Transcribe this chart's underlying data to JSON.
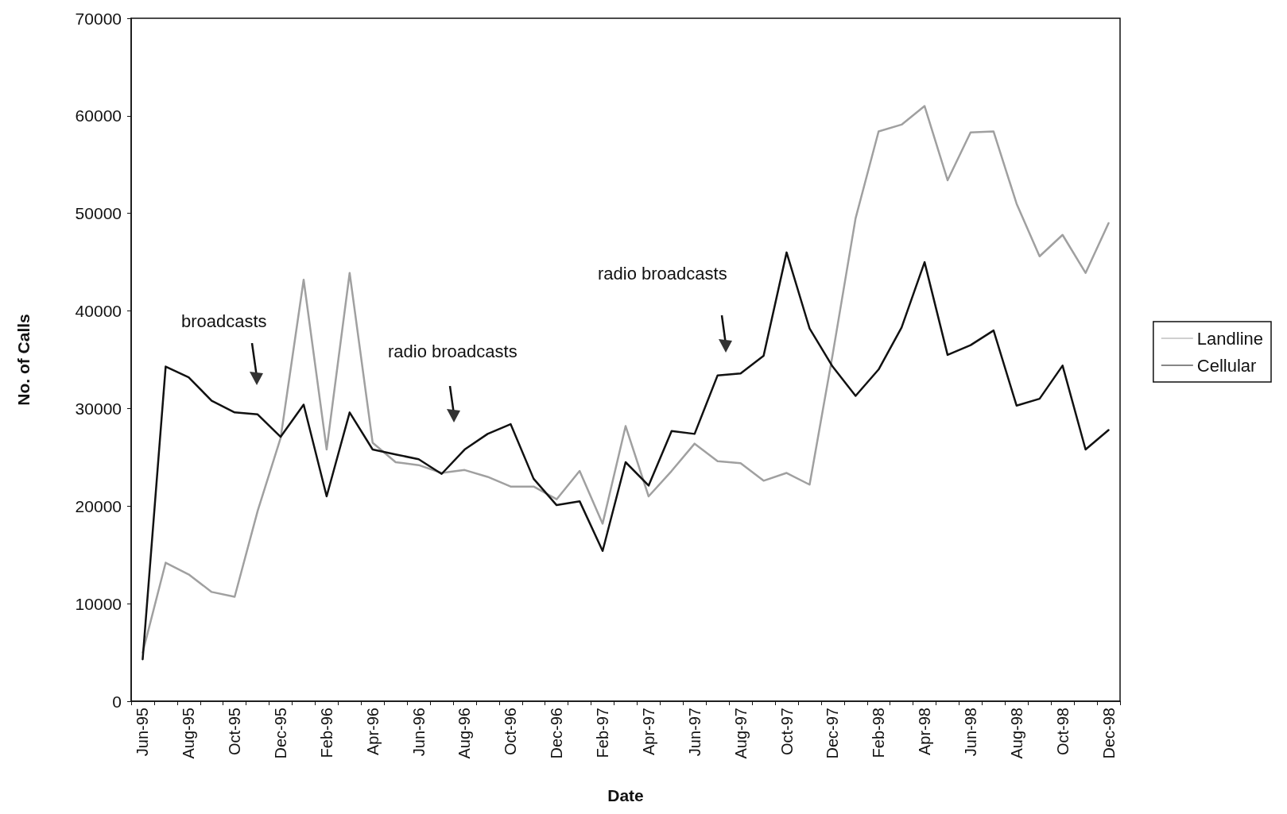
{
  "chart_data": {
    "type": "line",
    "xlabel": "Date",
    "ylabel": "No. of Calls",
    "categories": [
      "Jun-95",
      null,
      "Aug-95",
      null,
      "Oct-95",
      null,
      "Dec-95",
      null,
      "Feb-96",
      null,
      "Apr-96",
      null,
      "Jun-96",
      null,
      "Aug-96",
      null,
      "Oct-96",
      null,
      "Dec-96",
      null,
      "Feb-97",
      null,
      "Apr-97",
      null,
      "Jun-97",
      null,
      "Aug-97",
      null,
      "Oct-97",
      null,
      "Dec-97",
      null,
      "Feb-98",
      null,
      "Apr-98",
      null,
      "Jun-98",
      null,
      "Aug-98",
      null,
      "Oct-98",
      null,
      "Dec-98"
    ],
    "series": [
      {
        "name": "Landline",
        "color": "#a0a0a0",
        "values": [
          5000,
          14200,
          13000,
          11200,
          10700,
          19500,
          27000,
          43200,
          25800,
          43900,
          26500,
          24500,
          24200,
          23400,
          23700,
          23000,
          22000,
          22000,
          20700,
          23600,
          18200,
          28200,
          21000,
          23600,
          26400,
          24600,
          24400,
          22600,
          23400,
          22200,
          35500,
          49500,
          58400,
          59100,
          61000,
          53400,
          58300,
          58400,
          51000,
          45600,
          47800,
          43900,
          49000
        ]
      },
      {
        "name": "Cellular",
        "color": "#111111",
        "values": [
          4300,
          34300,
          33200,
          30800,
          29600,
          29400,
          27100,
          30400,
          21000,
          29600,
          25800,
          25300,
          24800,
          23300,
          25800,
          27400,
          28400,
          22800,
          20100,
          20500,
          15400,
          24500,
          22100,
          27700,
          27400,
          33400,
          33600,
          35400,
          46000,
          38200,
          34300,
          31300,
          34000,
          38300,
          45000,
          35500,
          36500,
          38000,
          30300,
          31000,
          34400,
          25800,
          27800
        ]
      }
    ],
    "ylim": [
      0,
      70000
    ],
    "yticks": [
      0,
      10000,
      20000,
      30000,
      40000,
      50000,
      60000,
      70000
    ],
    "grid": false,
    "legend": "right",
    "marker": "none",
    "line_style": "solid",
    "annotations": [
      "broadcasts",
      "radio broadcasts",
      "radio broadcasts"
    ]
  }
}
